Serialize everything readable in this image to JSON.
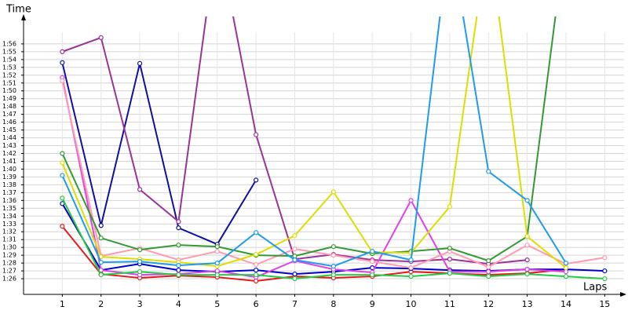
{
  "chart_data": {
    "type": "line",
    "y_label": "Time",
    "x_label": "Laps",
    "x": [
      1,
      2,
      3,
      4,
      5,
      6,
      7,
      8,
      9,
      10,
      11,
      12,
      13,
      14,
      15
    ],
    "xlim": [
      0,
      15.5
    ],
    "xticks": [
      1,
      2,
      3,
      4,
      5,
      6,
      7,
      8,
      9,
      10,
      11,
      12,
      13,
      14,
      15
    ],
    "ylim": [
      84,
      119.5
    ],
    "yticks": [
      {
        "value": 86,
        "label": "1:26"
      },
      {
        "value": 87,
        "label": "1:27"
      },
      {
        "value": 88,
        "label": "1:28"
      },
      {
        "value": 89,
        "label": "1:29"
      },
      {
        "value": 90,
        "label": "1:30"
      },
      {
        "value": 91,
        "label": "1:31"
      },
      {
        "value": 92,
        "label": "1:32"
      },
      {
        "value": 93,
        "label": "1:33"
      },
      {
        "value": 94,
        "label": "1:34"
      },
      {
        "value": 95,
        "label": "1:35"
      },
      {
        "value": 96,
        "label": "1:36"
      },
      {
        "value": 97,
        "label": "1:37"
      },
      {
        "value": 98,
        "label": "1:38"
      },
      {
        "value": 99,
        "label": "1:39"
      },
      {
        "value": 100,
        "label": "1:40"
      },
      {
        "value": 101,
        "label": "1:41"
      },
      {
        "value": 102,
        "label": "1:42"
      },
      {
        "value": 103,
        "label": "1:43"
      },
      {
        "value": 104,
        "label": "1:44"
      },
      {
        "value": 105,
        "label": "1:45"
      },
      {
        "value": 106,
        "label": "1:46"
      },
      {
        "value": 107,
        "label": "1:47"
      },
      {
        "value": 108,
        "label": "1:48"
      },
      {
        "value": 109,
        "label": "1:49"
      },
      {
        "value": 110,
        "label": "1:50"
      },
      {
        "value": 111,
        "label": "1:51"
      },
      {
        "value": 112,
        "label": "1:52"
      },
      {
        "value": 113,
        "label": "1:53"
      },
      {
        "value": 114,
        "label": "1:54"
      },
      {
        "value": 115,
        "label": "1:55"
      },
      {
        "value": 116,
        "label": "1:56"
      }
    ],
    "grid": true,
    "series": [
      {
        "color": "#e31a1c",
        "values": [
          92.7,
          86.6,
          86.1,
          86.4,
          86.2,
          85.7,
          86.3,
          86.1,
          86.3,
          86.9,
          86.7,
          86.5,
          86.7,
          87.2,
          null
        ]
      },
      {
        "color": "#1010a0",
        "values": [
          113.6,
          92.8,
          113.5,
          92.5,
          90.4,
          98.6,
          null,
          null,
          null,
          null,
          null,
          null,
          null,
          null,
          null
        ]
      },
      {
        "color": "#0000cc",
        "values": [
          95.6,
          87.1,
          87.9,
          87.1,
          86.9,
          87.1,
          86.6,
          86.9,
          87.4,
          87.3,
          87.1,
          87.0,
          87.2,
          87.2,
          87.0
        ]
      },
      {
        "color": "#993399",
        "values": [
          115.0,
          116.8,
          97.4,
          93.3,
          130,
          104.4,
          88.5,
          89.1,
          88.4,
          88.2,
          88.5,
          87.9,
          88.4,
          null,
          null
        ]
      },
      {
        "color": "#e040e8",
        "values": [
          111.7,
          87.1,
          86.5,
          86.6,
          87.0,
          86.2,
          88.3,
          87.2,
          86.8,
          96.0,
          86.9,
          86.9,
          87.2,
          86.9,
          null
        ]
      },
      {
        "color": "#ff9ab0",
        "values": [
          111.3,
          88.9,
          89.9,
          88.4,
          89.5,
          87.8,
          89.8,
          89.0,
          88.2,
          87.4,
          89.5,
          87.5,
          90.3,
          87.9,
          88.7
        ]
      },
      {
        "color": "#339933",
        "values": [
          102.0,
          91.2,
          89.7,
          90.3,
          90.1,
          89.0,
          88.9,
          90.1,
          89.2,
          89.5,
          89.9,
          88.3,
          91.4,
          130,
          null
        ]
      },
      {
        "color": "#22cc44",
        "values": [
          96.3,
          86.5,
          86.9,
          86.5,
          86.5,
          86.5,
          86.0,
          86.5,
          86.5,
          86.3,
          86.7,
          86.3,
          86.6,
          86.3,
          86.0
        ]
      },
      {
        "color": "#dddd00",
        "values": [
          100.8,
          88.8,
          88.5,
          88.1,
          87.6,
          89.1,
          91.5,
          97.1,
          89.4,
          89.3,
          95.2,
          130,
          91.4,
          87.4,
          null
        ]
      },
      {
        "color": "#1e9bea",
        "values": [
          99.2,
          88.1,
          88.2,
          87.7,
          88.0,
          91.9,
          88.4,
          87.6,
          89.5,
          88.4,
          130,
          99.7,
          96.0,
          88.0,
          null
        ]
      }
    ]
  }
}
